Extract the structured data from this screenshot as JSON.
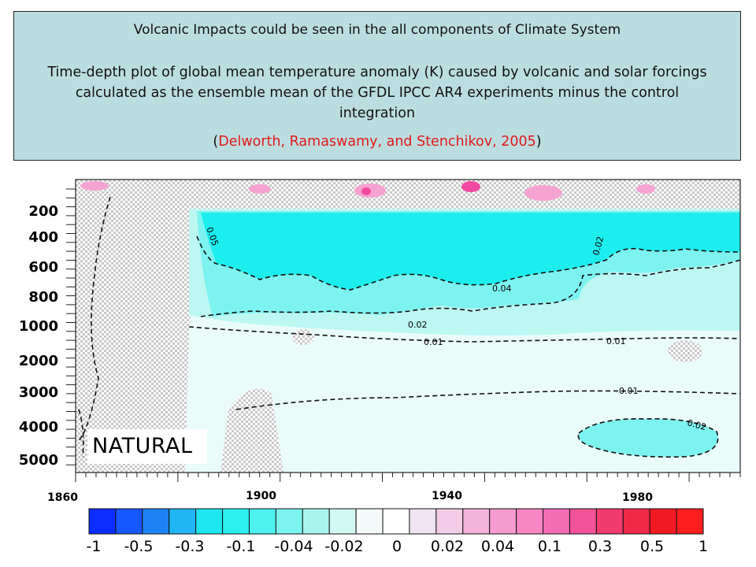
{
  "header": {
    "line1": "Volcanic Impacts could be seen in the all components of Climate System",
    "subtitle": "Time-depth plot of global mean temperature anomaly (K) caused by volcanic and solar forcings calculated as the ensemble mean of the GFDL IPCC AR4 experiments minus the control integration",
    "citation_open": "(",
    "citation": "Delworth, Ramaswamy, and Stenchikov, 2005",
    "citation_close": ")",
    "citation_color": "#e11919",
    "background": "#bcdde0"
  },
  "panel_label": "NATURAL",
  "chart_data": {
    "type": "heatmap",
    "title": "",
    "xlabel": "",
    "ylabel": "",
    "x_ticks": [
      "1860",
      "1900",
      "1940",
      "1980"
    ],
    "y_ticks": [
      "200",
      "400",
      "600",
      "800",
      "1000",
      "2000",
      "3000",
      "4000",
      "5000"
    ],
    "contour_labels": [
      "0.05",
      "0.04",
      "0.02",
      "0.01",
      "0.01",
      "0.01",
      "0.02",
      "0.02"
    ],
    "colorbar": {
      "tick_labels": [
        "-1",
        "-0.5",
        "-0.3",
        "-0.1",
        "-0.04",
        "-0.02",
        "0",
        "0.02",
        "0.04",
        "0.1",
        "0.3",
        "0.5",
        "1"
      ],
      "colors": [
        "#0b2dff",
        "#1657ff",
        "#1e84f6",
        "#20b6f4",
        "#1ee6f0",
        "#2cefef",
        "#4df2ee",
        "#7cf3ef",
        "#a8f5f0",
        "#d3f8f4",
        "#f5fafa",
        "#ffffff",
        "#f0e4f2",
        "#f3cde7",
        "#f3b3db",
        "#f59bcf",
        "#f686c4",
        "#f46eb6",
        "#f25296",
        "#f13b6e",
        "#f02848",
        "#f21a22",
        "#fa1e1e"
      ]
    },
    "fill_colors": {
      "strong_positive": "#f24aa0",
      "weak_positive": "#f5a3d2",
      "neg_004": "#1ceeee",
      "neg_002": "#7df3ef",
      "neg_001": "#bdf7f2",
      "near_zero": "#eafcfa",
      "hatch": "#c9c9c9"
    }
  }
}
